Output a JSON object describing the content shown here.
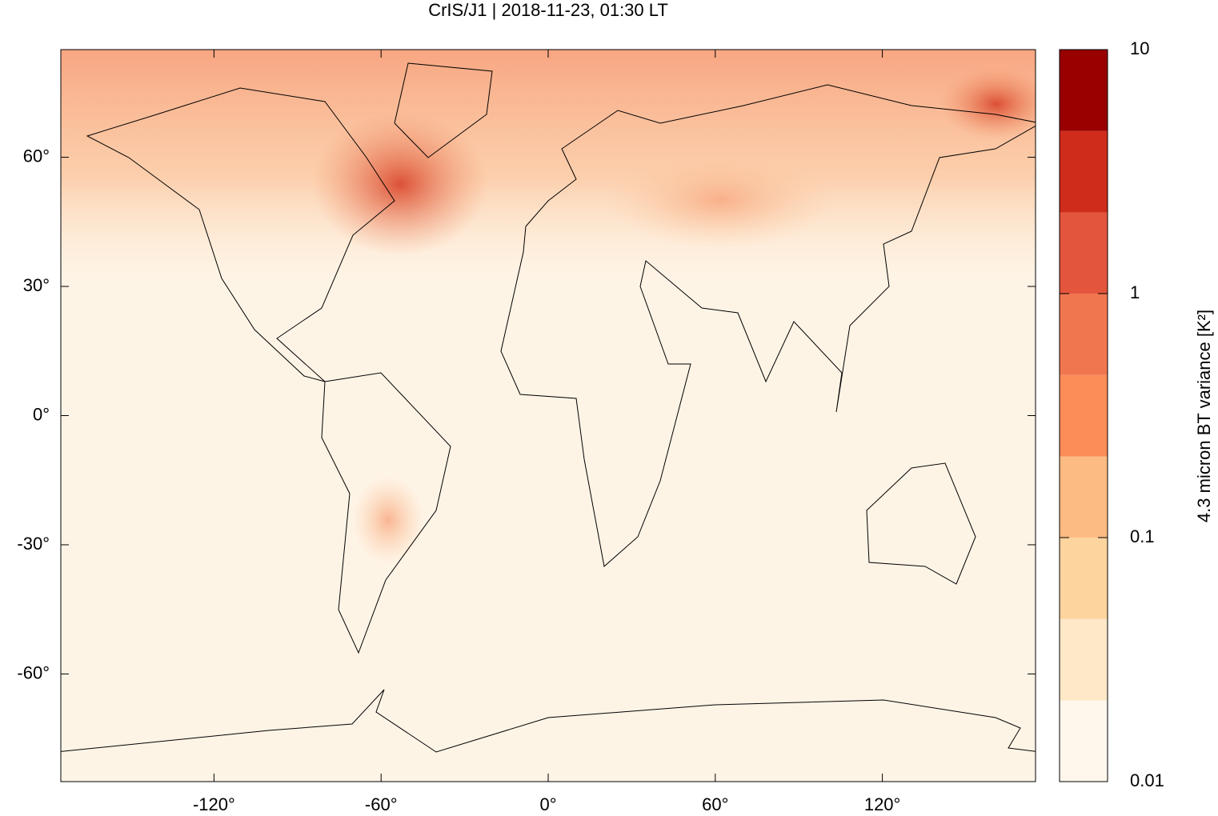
{
  "chart_data": {
    "type": "map",
    "title": "CrIS/J1 | 2018-11-23, 01:30 LT",
    "xlim": [
      -175,
      175
    ],
    "ylim": [
      -85,
      85
    ],
    "xticks": [
      {
        "value": -120,
        "label": "-120°"
      },
      {
        "value": -60,
        "label": "-60°"
      },
      {
        "value": 0,
        "label": "0°"
      },
      {
        "value": 60,
        "label": "60°"
      },
      {
        "value": 120,
        "label": "120°"
      }
    ],
    "yticks": [
      {
        "value": -60,
        "label": "-60°"
      },
      {
        "value": -30,
        "label": "-30°"
      },
      {
        "value": 0,
        "label": "0°"
      },
      {
        "value": 30,
        "label": "30°"
      },
      {
        "value": 60,
        "label": "60°"
      }
    ],
    "colorbar": {
      "label": "4.3 micron BT variance [K²]",
      "log_scale": true,
      "lim": [
        0.01,
        10
      ],
      "levels": [
        0.01,
        0.0215,
        0.0464,
        0.1,
        0.215,
        0.464,
        1,
        2.15,
        4.64,
        10
      ],
      "colors": [
        "#fff7ec",
        "#fee8c8",
        "#fdd49e",
        "#fdbb84",
        "#fc8d59",
        "#f07650",
        "#e4553d",
        "#cf2c1c",
        "#990000"
      ],
      "ticks": [
        0.01,
        0.1,
        1,
        10
      ]
    }
  }
}
